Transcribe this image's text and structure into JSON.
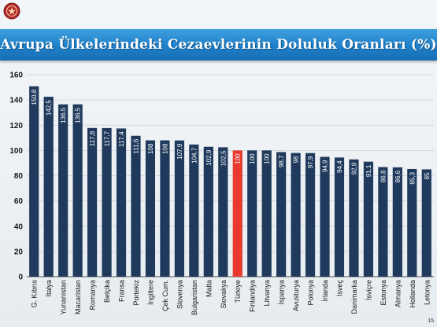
{
  "slide": {
    "title": "Avrupa Ülkelerindeki Cezaevlerinin Doluluk Oranları (%)",
    "page_number": "15",
    "logo_icon": "crest-icon"
  },
  "colors": {
    "title_bar": "#1f7fc8",
    "bar": "#1f3a5c",
    "highlight_bar": "#e83a2e",
    "bar_label": "#ffffff"
  },
  "chart_data": {
    "type": "bar",
    "title": "Avrupa Ülkelerindeki Cezaevlerinin Doluluk Oranları (%)",
    "xlabel": "",
    "ylabel": "",
    "ylim": [
      0,
      160
    ],
    "yticks": [
      0,
      20,
      40,
      60,
      80,
      100,
      120,
      140,
      160
    ],
    "grid": true,
    "categories": [
      "G. Kıbrıs",
      "İtalya",
      "Yunanistan",
      "Macaristan",
      "Romanya",
      "Belçika",
      "Fransa",
      "Portekiz",
      "İngiltere",
      "Çek Cum.",
      "Slovenya",
      "Bulgaristan",
      "Malta",
      "Slovakya",
      "Türkiye",
      "Finlandiya",
      "Litvanya",
      "İspanya",
      "Avusturya",
      "Polonya",
      "İrlanda",
      "İsveç",
      "Danimarka",
      "İsviçre",
      "Estonya",
      "Almanya",
      "Hollanda",
      "Letonya"
    ],
    "values": [
      150.8,
      142.5,
      136.5,
      136.5,
      117.8,
      117.7,
      117.4,
      111.6,
      108,
      108,
      107.9,
      104.7,
      102.9,
      102.5,
      100,
      100,
      100,
      98.7,
      98,
      97.9,
      94.9,
      94.4,
      92.9,
      91.1,
      86.8,
      86.6,
      85.3,
      85
    ],
    "labels": [
      "150,8",
      "142,5",
      "136,5",
      "136,5",
      "117,8",
      "117,7",
      "117,4",
      "111,6",
      "108",
      "108",
      "107,9",
      "104,7",
      "102,9",
      "102,5",
      "100",
      "100",
      "100",
      "98,7",
      "98",
      "97,9",
      "94,9",
      "94,4",
      "92,9",
      "91,1",
      "86,8",
      "86,6",
      "85,3",
      "85"
    ],
    "highlight": "Türkiye"
  }
}
